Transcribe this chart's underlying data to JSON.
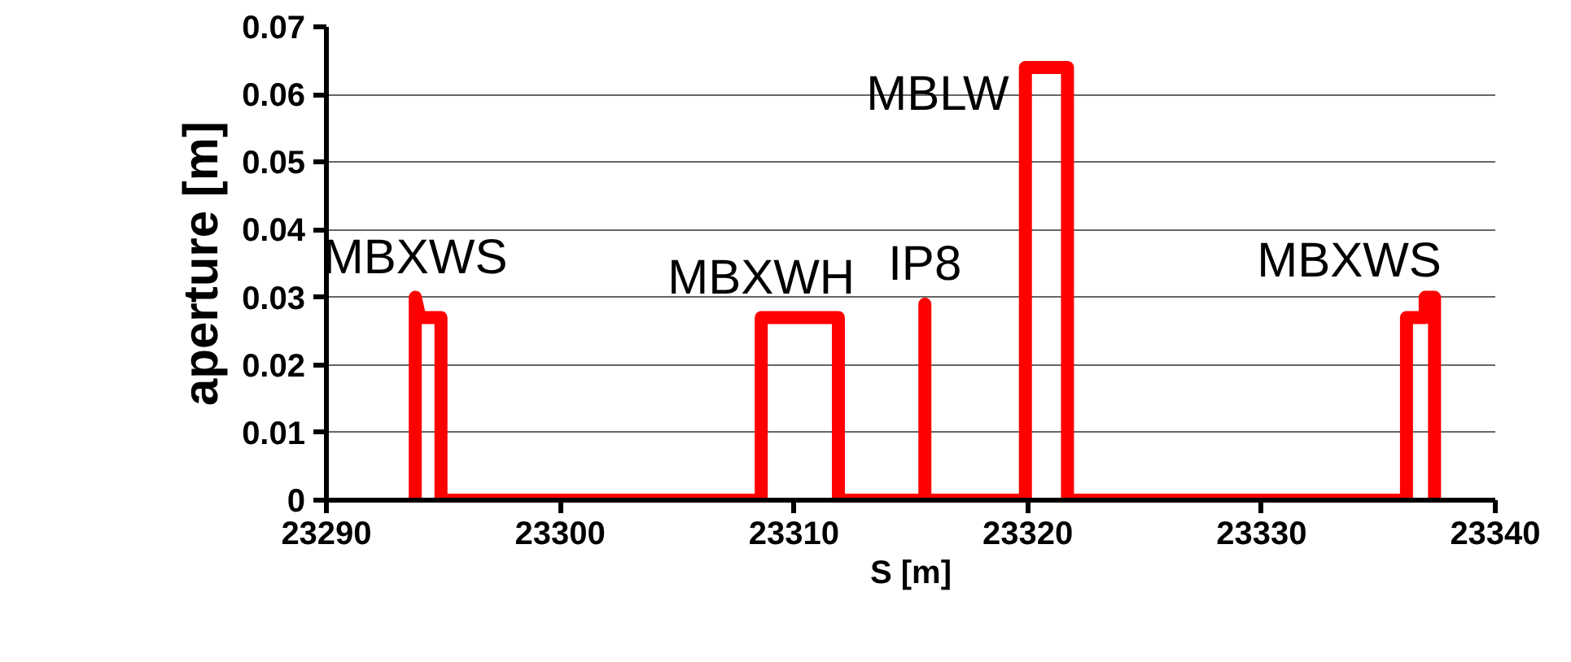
{
  "chart_data": {
    "type": "line",
    "xlabel": "S [m]",
    "ylabel": "aperture [m]",
    "x": [
      23293.8,
      23293.8,
      23294.0,
      23294.9,
      23294.9,
      23308.6,
      23308.6,
      23311.9,
      23311.9,
      23315.6,
      23315.6,
      23315.6,
      23319.9,
      23319.9,
      23321.7,
      23321.7,
      23336.2,
      23336.2,
      23337.0,
      23337.0,
      23337.4,
      23337.4
    ],
    "series": [
      {
        "color": "#ff0000",
        "values": [
          0,
          0.03,
          0.027,
          0.027,
          0,
          0,
          0.027,
          0.027,
          0,
          0,
          0.029,
          0,
          0,
          0.064,
          0.064,
          0,
          0,
          0.027,
          0.027,
          0.03,
          0.03,
          0
        ]
      }
    ],
    "xlim": [
      23290,
      23340
    ],
    "xticks": [
      23290,
      23300,
      23310,
      23320,
      23330,
      23340
    ],
    "ylim": [
      0,
      0.07
    ],
    "yticks": [
      {
        "value": 0,
        "label": "0"
      },
      0.01,
      0.02,
      0.03,
      0.04,
      0.05,
      0.06,
      0.07
    ],
    "grid": "y",
    "marker": "none",
    "line_style": "solid",
    "annotations": [
      {
        "text": "MBXWS",
        "x": 23293.8,
        "y": 0.03
      },
      {
        "text": "MBXWH",
        "x": 23308.6,
        "y": 0.027
      },
      {
        "text": "IP8",
        "x": 23315.6,
        "y": 0.029
      },
      {
        "text": "MBLW",
        "x": 23319.9,
        "y": 0.064
      },
      {
        "text": "MBXWS",
        "x": 23337.0,
        "y": 0.03
      }
    ]
  }
}
